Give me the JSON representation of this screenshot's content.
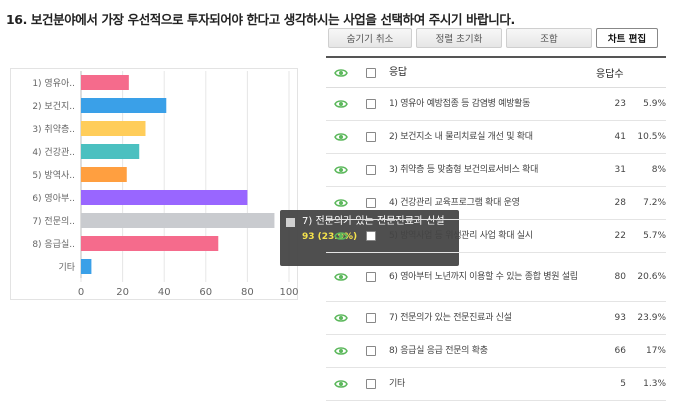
{
  "question": "16. 보건분야에서 가장 우선적으로 투자되어야 한다고 생각하시는 사업을 선택하여 주시기 바랍니다.",
  "toolbar": {
    "hide_cancel": "숨기기 취소",
    "reset_sort": "정렬 초기화",
    "lookup": "조합",
    "edit_chart": "차트 편집"
  },
  "table": {
    "header_answer": "응답",
    "header_count": "응답수",
    "rows": [
      {
        "label": "1) 영유아 예방접종 등 감염병 예방활동",
        "count": "23",
        "pct": "5.9%"
      },
      {
        "label": "2) 보건지소 내 물리치료실 개선 및 확대",
        "count": "41",
        "pct": "10.5%"
      },
      {
        "label": "3) 취약층 등 맞춤형 보건의료서비스 확대",
        "count": "31",
        "pct": "8%"
      },
      {
        "label": "4) 건강관리 교육프로그램 확대 운영",
        "count": "28",
        "pct": "7.2%"
      },
      {
        "label": "5) 방역사업 등 위생관리 사업 확대 실시",
        "count": "22",
        "pct": "5.7%"
      },
      {
        "label": "6) 영아부터 노년까지 이용할 수 있는 종합 병원 설립",
        "count": "80",
        "pct": "20.6%"
      },
      {
        "label": "7) 전문의가 있는 전문진료과 신설",
        "count": "93",
        "pct": "23.9%"
      },
      {
        "label": "8) 응급실 응급 전문의 확충",
        "count": "66",
        "pct": "17%"
      },
      {
        "label": "기타",
        "count": "5",
        "pct": "1.3%"
      }
    ]
  },
  "tooltip": {
    "label": "7) 전문의가 있는 전문진료과 신설",
    "value": "93 (23.9%)"
  },
  "chart_data": {
    "type": "bar",
    "orientation": "horizontal",
    "categories": [
      "1) 영유아..",
      "2) 보건지..",
      "3) 취약층..",
      "4) 건강관..",
      "5) 방역사..",
      "6) 영아부..",
      "7) 전문의..",
      "8) 응급실..",
      "기타"
    ],
    "values": [
      23,
      41,
      31,
      28,
      22,
      80,
      93,
      66,
      5
    ],
    "colors": [
      "#f56b8c",
      "#3aa0e8",
      "#ffcd5a",
      "#4bc0c0",
      "#ff9f40",
      "#9966ff",
      "#c9cbcf",
      "#f56b8c",
      "#3aa0e8"
    ],
    "xticks": [
      "0",
      "20",
      "40",
      "60",
      "80",
      "100"
    ],
    "xlim": [
      0,
      100
    ],
    "highlighted_index": 6,
    "grid": true
  }
}
